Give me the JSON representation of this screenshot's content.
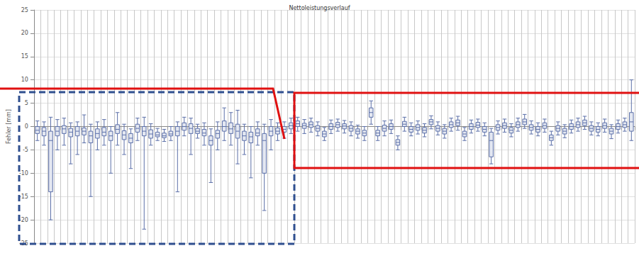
{
  "chart_data": {
    "type": "boxplot",
    "title": "Nettoleistungsverlauf",
    "ylabel": "Fehler [mm]",
    "categories": [
      null,
      null,
      null,
      null,
      null,
      null,
      null,
      null,
      null,
      null,
      null,
      null,
      null,
      null,
      null,
      null,
      null,
      null,
      null,
      null,
      null,
      null,
      null,
      null,
      null,
      null,
      null,
      null,
      null,
      null,
      null,
      null,
      null,
      null,
      null,
      null,
      null,
      null,
      null,
      null,
      null,
      null,
      null,
      null,
      null,
      null,
      null,
      null,
      null,
      null,
      null,
      null,
      null,
      null,
      null,
      null,
      null,
      null,
      null,
      null,
      null,
      null,
      null,
      null,
      null,
      null,
      null,
      null,
      null,
      null,
      null,
      null,
      null,
      null,
      null,
      null,
      null,
      null,
      null,
      null,
      null,
      null,
      null,
      null,
      null,
      null,
      null,
      null,
      null,
      null
    ],
    "values": [
      [
        -3,
        -1.5,
        -0.8,
        0,
        1.2
      ],
      [
        -4,
        -2,
        -1,
        -0.2,
        1
      ],
      [
        -20,
        -14,
        -3,
        -1,
        2
      ],
      [
        -5,
        -2,
        -1,
        0,
        1.5
      ],
      [
        -4,
        -1.5,
        -0.5,
        0.2,
        1.8
      ],
      [
        -8,
        -2.2,
        -1.2,
        -0.4,
        0.8
      ],
      [
        -6,
        -2,
        -1,
        0,
        1
      ],
      [
        -3.5,
        -1.8,
        -1,
        -0.3,
        2.5
      ],
      [
        -15,
        -3.5,
        -2,
        -1,
        0.5
      ],
      [
        -5,
        -2.5,
        -1.5,
        -0.5,
        1
      ],
      [
        -4,
        -2,
        -1.2,
        -0.2,
        1.5
      ],
      [
        -10,
        -3,
        -2,
        -1,
        0
      ],
      [
        -4,
        -1.5,
        -0.6,
        0.4,
        3
      ],
      [
        -6,
        -2.8,
        -1.8,
        -0.9,
        0.5
      ],
      [
        -9,
        -3.5,
        -2.5,
        -1.5,
        -0.5
      ],
      [
        -3,
        -1.2,
        -0.4,
        0.5,
        1.8
      ],
      [
        -22,
        -2,
        -1,
        0,
        2
      ],
      [
        -4,
        -2.5,
        -1.6,
        -0.7,
        0.6
      ],
      [
        -3,
        -2.2,
        -1.8,
        -1.2,
        -0.4
      ],
      [
        -3.2,
        -2.4,
        -2,
        -1.4,
        -0.6
      ],
      [
        -3,
        -2,
        -1.6,
        -1,
        0
      ],
      [
        -14,
        -2,
        -1,
        0,
        1
      ],
      [
        -2,
        -0.8,
        0,
        0.8,
        2
      ],
      [
        -6,
        -1.5,
        -0.4,
        0.6,
        1.8
      ],
      [
        -2.5,
        -1.5,
        -1,
        -0.4,
        0.5
      ],
      [
        -4,
        -2,
        -1.4,
        -0.6,
        0.8
      ],
      [
        -12,
        -4,
        -3,
        -2,
        -0.5
      ],
      [
        -5,
        -2.5,
        -1.5,
        -0.8,
        1
      ],
      [
        -3,
        -1,
        0,
        1.2,
        4
      ],
      [
        -4,
        -1.5,
        -0.5,
        0.8,
        3
      ],
      [
        -8,
        -2.5,
        -1,
        0.5,
        3.5
      ],
      [
        -6,
        -3,
        -2,
        -1,
        0.5
      ],
      [
        -11,
        -3.5,
        -2.2,
        -1.2,
        0
      ],
      [
        -4,
        -2,
        -1.4,
        -0.5,
        1
      ],
      [
        -18,
        -10,
        -3,
        -1.5,
        0.5
      ],
      [
        -5,
        -2,
        -1,
        0,
        1.5
      ],
      [
        -3,
        -1.6,
        -1,
        -0.3,
        0.8
      ],
      [
        -2.5,
        -1.2,
        -0.6,
        0,
        1
      ],
      [
        -1.5,
        -0.5,
        0.2,
        0.8,
        1.8
      ],
      [
        -1,
        0,
        0.6,
        1.2,
        2
      ],
      [
        -1.5,
        -0.4,
        0.2,
        0.7,
        1.5
      ],
      [
        -1.2,
        -0.2,
        0.4,
        1,
        1.8
      ],
      [
        -2,
        -1,
        -0.4,
        0.2,
        1
      ],
      [
        -3,
        -2.2,
        -1.6,
        -1,
        -0.2
      ],
      [
        -1.5,
        -0.6,
        0,
        0.6,
        1.4
      ],
      [
        -1,
        -0.2,
        0.4,
        0.9,
        1.6
      ],
      [
        -1.4,
        -0.5,
        0.1,
        0.6,
        1.3
      ],
      [
        -2,
        -1,
        -0.4,
        0.2,
        1
      ],
      [
        -2.5,
        -1.6,
        -1,
        -0.5,
        0.3
      ],
      [
        -3,
        -2,
        -1.4,
        -0.8,
        0
      ],
      [
        0.5,
        2,
        3,
        4,
        5.5
      ],
      [
        -3,
        -2,
        -1.4,
        -0.8,
        0
      ],
      [
        -2,
        -1,
        -0.4,
        0.3,
        1.2
      ],
      [
        -1.5,
        -0.6,
        0,
        0.6,
        1.4
      ],
      [
        -5,
        -4,
        -3.4,
        -2.8,
        -2
      ],
      [
        -1,
        0,
        0.5,
        1.1,
        2
      ],
      [
        -2,
        -1.2,
        -0.6,
        0,
        0.8
      ],
      [
        -1.6,
        -0.8,
        -0.2,
        0.4,
        1.2
      ],
      [
        -2.2,
        -1.4,
        -0.8,
        -0.2,
        0.6
      ],
      [
        -0.5,
        0.4,
        1,
        1.5,
        2.3
      ],
      [
        -1.8,
        -1,
        -0.4,
        0.2,
        1
      ],
      [
        -2.5,
        -1.6,
        -1,
        -0.4,
        0.4
      ],
      [
        -1,
        -0.2,
        0.4,
        1,
        1.8
      ],
      [
        -0.8,
        0.2,
        0.8,
        1.4,
        2.2
      ],
      [
        -3,
        -2.2,
        -1.6,
        -1,
        -0.2
      ],
      [
        -1.4,
        -0.6,
        0,
        0.6,
        1.4
      ],
      [
        -1,
        -0.2,
        0.3,
        0.9,
        1.6
      ],
      [
        -2,
        -1.2,
        -0.6,
        0,
        0.8
      ],
      [
        -8,
        -6.5,
        -3,
        -1.2,
        -0.4
      ],
      [
        -1.6,
        -0.8,
        -0.2,
        0.4,
        1.2
      ],
      [
        -1.2,
        -0.4,
        0.2,
        0.8,
        1.6
      ],
      [
        -2.2,
        -1.4,
        -0.8,
        -0.2,
        0.6
      ],
      [
        -1,
        -0.2,
        0.4,
        1,
        1.8
      ],
      [
        -0.4,
        0.4,
        1,
        1.6,
        2.6
      ],
      [
        -1.6,
        -0.8,
        -0.2,
        0.4,
        1.2
      ],
      [
        -2,
        -1.2,
        -0.6,
        0,
        0.8
      ],
      [
        -1.2,
        -0.4,
        0.2,
        0.8,
        1.6
      ],
      [
        -4,
        -3,
        -2.4,
        -1.8,
        -1
      ],
      [
        -1.8,
        -1,
        -0.4,
        0.2,
        1
      ],
      [
        -2.4,
        -1.6,
        -1,
        -0.4,
        0.4
      ],
      [
        -1.4,
        -0.6,
        0,
        0.6,
        1.4
      ],
      [
        -1,
        -0.2,
        0.4,
        1,
        1.8
      ],
      [
        -0.6,
        0.2,
        0.8,
        1.4,
        2.2
      ],
      [
        -1.8,
        -1,
        -0.4,
        0.2,
        1
      ],
      [
        -2,
        -1.2,
        -0.6,
        0,
        0.8
      ],
      [
        -1.2,
        -0.4,
        0.2,
        0.8,
        1.6
      ],
      [
        -2.6,
        -1.6,
        -1,
        -0.4,
        0.4
      ],
      [
        -1.4,
        -0.6,
        0,
        0.6,
        1.4
      ],
      [
        -1,
        -0.2,
        0.4,
        1,
        1.8
      ],
      [
        -3,
        -1,
        1,
        3,
        10
      ]
    ],
    "color": "#5b6fa8",
    "ylim": [
      -25,
      25
    ],
    "yticks": [
      -25,
      -20,
      -15,
      -10,
      -5,
      0,
      5,
      10,
      15,
      20,
      25
    ],
    "grid": true,
    "tick_labels": "y"
  }
}
